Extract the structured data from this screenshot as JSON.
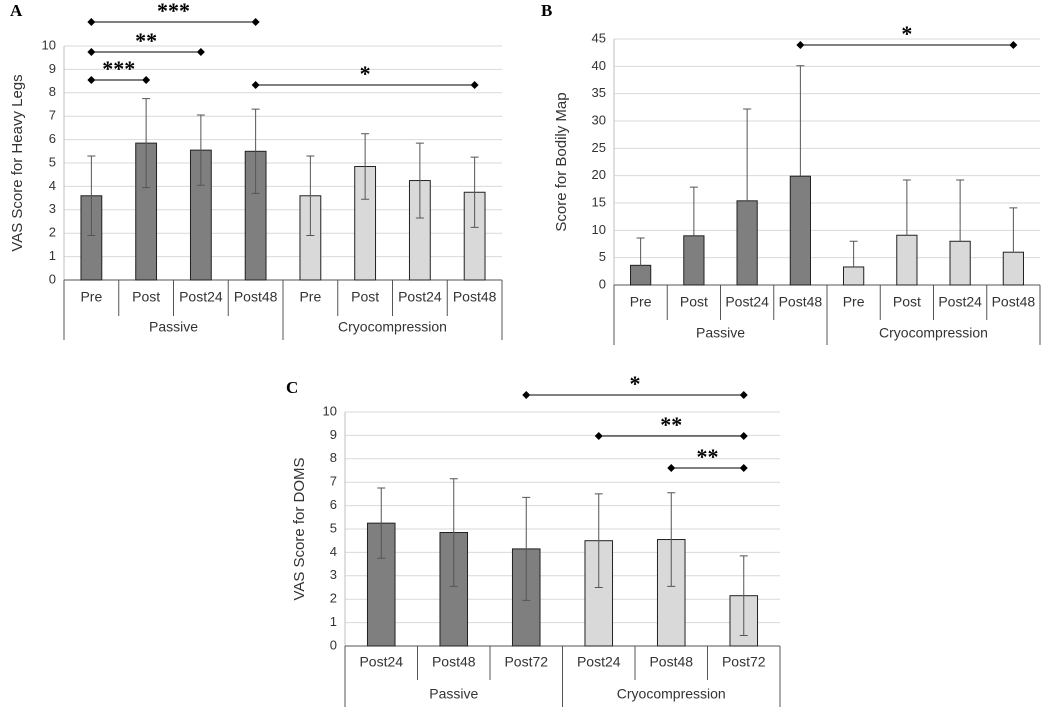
{
  "chart_data": [
    {
      "type": "bar",
      "panel": "A",
      "y_label": "VAS Score for Heavy Legs",
      "categories": [
        "Pre",
        "Post",
        "Post24",
        "Post48"
      ],
      "series": [
        {
          "name": "Passive",
          "color": "#7f7f7f",
          "values": [
            3.6,
            5.85,
            5.55,
            5.5
          ],
          "errors": [
            1.7,
            1.9,
            1.5,
            1.8
          ]
        },
        {
          "name": "Cryocompression",
          "color": "#d9d9d9",
          "values": [
            3.6,
            4.85,
            4.25,
            3.75
          ],
          "errors": [
            1.7,
            1.4,
            1.6,
            1.5
          ]
        }
      ],
      "error_bars": "both",
      "ylim": [
        0,
        10
      ],
      "yticks": [
        0,
        1,
        2,
        3,
        4,
        5,
        6,
        7,
        8,
        9,
        10
      ],
      "grid": true,
      "significance": [
        {
          "label": "***",
          "from": 0,
          "to": 3
        },
        {
          "label": "**",
          "from": 0,
          "to": 2
        },
        {
          "label": "***",
          "from": 0,
          "to": 1
        },
        {
          "label": "*",
          "from": 3,
          "to": 7
        }
      ]
    },
    {
      "type": "bar",
      "panel": "B",
      "y_label": "Score for Bodily Map",
      "categories": [
        "Pre",
        "Post",
        "Post24",
        "Post48"
      ],
      "series": [
        {
          "name": "Passive",
          "color": "#7f7f7f",
          "values": [
            3.6,
            9.0,
            15.4,
            19.9
          ],
          "errors": [
            5.0,
            8.9,
            16.8,
            20.2
          ]
        },
        {
          "name": "Cryocompression",
          "color": "#d9d9d9",
          "values": [
            3.3,
            9.1,
            8.0,
            6.0
          ],
          "errors": [
            4.7,
            10.1,
            11.2,
            8.1
          ]
        }
      ],
      "error_bars": "upper",
      "ylim": [
        0,
        45
      ],
      "yticks": [
        0,
        5,
        10,
        15,
        20,
        25,
        30,
        35,
        40,
        45
      ],
      "grid": true,
      "significance": [
        {
          "label": "*",
          "from": 3,
          "to": 7
        }
      ]
    },
    {
      "type": "bar",
      "panel": "C",
      "y_label": "VAS Score for DOMS",
      "categories": [
        "Post24",
        "Post48",
        "Post72"
      ],
      "series": [
        {
          "name": "Passive",
          "color": "#7f7f7f",
          "values": [
            5.25,
            4.85,
            4.15
          ],
          "errors": [
            1.5,
            2.3,
            2.2
          ]
        },
        {
          "name": "Cryocompression",
          "color": "#d9d9d9",
          "values": [
            4.5,
            4.55,
            2.15
          ],
          "errors": [
            2.0,
            2.0,
            1.7
          ]
        }
      ],
      "error_bars": "both",
      "ylim": [
        0,
        10
      ],
      "yticks": [
        0,
        1,
        2,
        3,
        4,
        5,
        6,
        7,
        8,
        9,
        10
      ],
      "grid": true,
      "significance": [
        {
          "label": "*",
          "from": 2,
          "to": 5
        },
        {
          "label": "**",
          "from": 3,
          "to": 5
        },
        {
          "label": "**",
          "from": 4,
          "to": 5
        }
      ]
    }
  ]
}
